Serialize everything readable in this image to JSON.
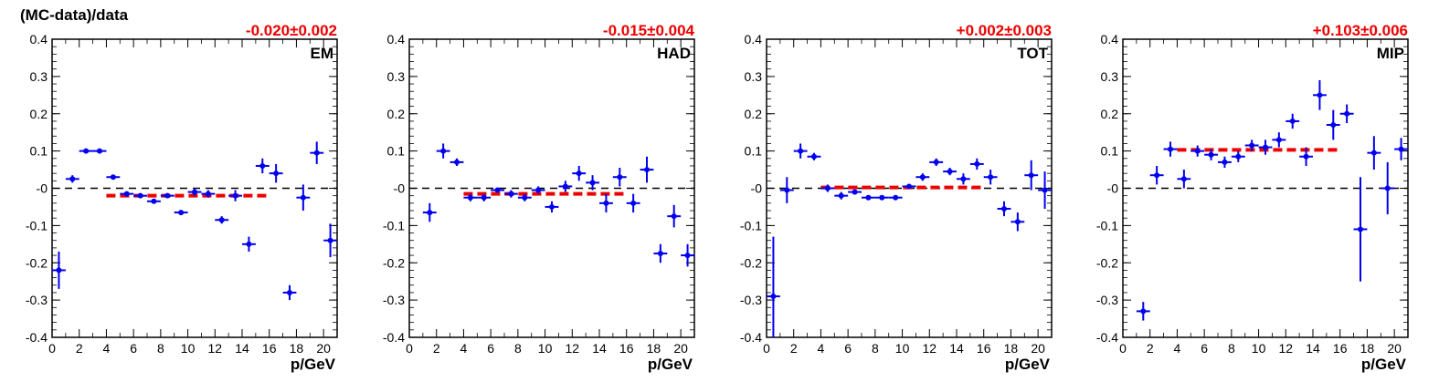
{
  "figure": {
    "ylabel": "(MC-data)/data"
  },
  "chart_data": [
    {
      "type": "scatter",
      "panel_label": "EM",
      "fit_label": "-0.020±0.002",
      "xlabel": "p/GeV",
      "xlim": [
        0,
        21
      ],
      "ylim": [
        -0.4,
        0.4
      ],
      "xticks": [
        "0",
        "2",
        "4",
        "6",
        "8",
        "10",
        "12",
        "14",
        "16",
        "18",
        "20"
      ],
      "yticks": [
        "-0.4",
        "-0.3",
        "-0.2",
        "-0.1",
        "-0",
        "0.1",
        "0.2",
        "0.3",
        "0.4"
      ],
      "reference_line": 0,
      "fit": {
        "x": [
          4,
          16
        ],
        "y": -0.02
      },
      "colors": {
        "points": "#0000ee",
        "fit": "#ee0000"
      },
      "points": [
        {
          "x": 0.5,
          "y": -0.22,
          "yerr": 0.05
        },
        {
          "x": 1.5,
          "y": 0.025,
          "yerr": 0.01
        },
        {
          "x": 2.5,
          "y": 0.1,
          "yerr": 0.005
        },
        {
          "x": 3.5,
          "y": 0.1,
          "yerr": 0.005
        },
        {
          "x": 4.5,
          "y": 0.03,
          "yerr": 0.005
        },
        {
          "x": 5.5,
          "y": -0.015,
          "yerr": 0.005
        },
        {
          "x": 6.5,
          "y": -0.02,
          "yerr": 0.005
        },
        {
          "x": 7.5,
          "y": -0.035,
          "yerr": 0.005
        },
        {
          "x": 8.5,
          "y": -0.02,
          "yerr": 0.005
        },
        {
          "x": 9.5,
          "y": -0.065,
          "yerr": 0.005
        },
        {
          "x": 10.5,
          "y": -0.01,
          "yerr": 0.01
        },
        {
          "x": 11.5,
          "y": -0.015,
          "yerr": 0.01
        },
        {
          "x": 12.5,
          "y": -0.085,
          "yerr": 0.01
        },
        {
          "x": 13.5,
          "y": -0.02,
          "yerr": 0.015
        },
        {
          "x": 14.5,
          "y": -0.15,
          "yerr": 0.02
        },
        {
          "x": 15.5,
          "y": 0.06,
          "yerr": 0.02
        },
        {
          "x": 16.5,
          "y": 0.04,
          "yerr": 0.025
        },
        {
          "x": 17.5,
          "y": -0.28,
          "yerr": 0.02
        },
        {
          "x": 18.5,
          "y": -0.025,
          "yerr": 0.035
        },
        {
          "x": 19.5,
          "y": 0.095,
          "yerr": 0.03
        },
        {
          "x": 20.5,
          "y": -0.14,
          "yerr": 0.045
        }
      ]
    },
    {
      "type": "scatter",
      "panel_label": "HAD",
      "fit_label": "-0.015±0.004",
      "xlabel": "p/GeV",
      "xlim": [
        0,
        21
      ],
      "ylim": [
        -0.4,
        0.4
      ],
      "xticks": [
        "0",
        "2",
        "4",
        "6",
        "8",
        "10",
        "12",
        "14",
        "16",
        "18",
        "20"
      ],
      "yticks": [
        "-0.4",
        "-0.3",
        "-0.2",
        "-0.1",
        "-0",
        "0.1",
        "0.2",
        "0.3",
        "0.4"
      ],
      "reference_line": 0,
      "fit": {
        "x": [
          4,
          16
        ],
        "y": -0.015
      },
      "colors": {
        "points": "#0000ee",
        "fit": "#ee0000"
      },
      "points": [
        {
          "x": 1.5,
          "y": -0.065,
          "yerr": 0.025
        },
        {
          "x": 2.5,
          "y": 0.1,
          "yerr": 0.02
        },
        {
          "x": 3.5,
          "y": 0.07,
          "yerr": 0.01
        },
        {
          "x": 4.5,
          "y": -0.025,
          "yerr": 0.01
        },
        {
          "x": 5.5,
          "y": -0.025,
          "yerr": 0.01
        },
        {
          "x": 6.5,
          "y": -0.005,
          "yerr": 0.005
        },
        {
          "x": 7.5,
          "y": -0.015,
          "yerr": 0.01
        },
        {
          "x": 8.5,
          "y": -0.025,
          "yerr": 0.01
        },
        {
          "x": 9.5,
          "y": -0.005,
          "yerr": 0.01
        },
        {
          "x": 10.5,
          "y": -0.05,
          "yerr": 0.015
        },
        {
          "x": 11.5,
          "y": 0.005,
          "yerr": 0.015
        },
        {
          "x": 12.5,
          "y": 0.04,
          "yerr": 0.02
        },
        {
          "x": 13.5,
          "y": 0.015,
          "yerr": 0.02
        },
        {
          "x": 14.5,
          "y": -0.04,
          "yerr": 0.025
        },
        {
          "x": 15.5,
          "y": 0.03,
          "yerr": 0.025
        },
        {
          "x": 16.5,
          "y": -0.04,
          "yerr": 0.025
        },
        {
          "x": 17.5,
          "y": 0.05,
          "yerr": 0.035
        },
        {
          "x": 18.5,
          "y": -0.175,
          "yerr": 0.025
        },
        {
          "x": 19.5,
          "y": -0.075,
          "yerr": 0.03
        },
        {
          "x": 20.5,
          "y": -0.18,
          "yerr": 0.03
        }
      ]
    },
    {
      "type": "scatter",
      "panel_label": "TOT",
      "fit_label": "+0.002±0.003",
      "xlabel": "p/GeV",
      "xlim": [
        0,
        21
      ],
      "ylim": [
        -0.4,
        0.4
      ],
      "xticks": [
        "0",
        "2",
        "4",
        "6",
        "8",
        "10",
        "12",
        "14",
        "16",
        "18",
        "20"
      ],
      "yticks": [
        "-0.4",
        "-0.3",
        "-0.2",
        "-0.1",
        "-0",
        "0.1",
        "0.2",
        "0.3",
        "0.4"
      ],
      "reference_line": 0,
      "fit": {
        "x": [
          4,
          16
        ],
        "y": 0.002
      },
      "colors": {
        "points": "#0000ee",
        "fit": "#ee0000"
      },
      "points": [
        {
          "x": 0.5,
          "y": -0.29,
          "yerr": 0.16
        },
        {
          "x": 1.5,
          "y": -0.005,
          "yerr": 0.035
        },
        {
          "x": 2.5,
          "y": 0.1,
          "yerr": 0.02
        },
        {
          "x": 3.5,
          "y": 0.085,
          "yerr": 0.01
        },
        {
          "x": 4.5,
          "y": 0.0,
          "yerr": 0.01
        },
        {
          "x": 5.5,
          "y": -0.02,
          "yerr": 0.01
        },
        {
          "x": 6.5,
          "y": -0.01,
          "yerr": 0.005
        },
        {
          "x": 7.5,
          "y": -0.025,
          "yerr": 0.005
        },
        {
          "x": 8.5,
          "y": -0.025,
          "yerr": 0.005
        },
        {
          "x": 9.5,
          "y": -0.025,
          "yerr": 0.005
        },
        {
          "x": 10.5,
          "y": 0.005,
          "yerr": 0.005
        },
        {
          "x": 11.5,
          "y": 0.03,
          "yerr": 0.01
        },
        {
          "x": 12.5,
          "y": 0.07,
          "yerr": 0.01
        },
        {
          "x": 13.5,
          "y": 0.045,
          "yerr": 0.01
        },
        {
          "x": 14.5,
          "y": 0.025,
          "yerr": 0.015
        },
        {
          "x": 15.5,
          "y": 0.065,
          "yerr": 0.015
        },
        {
          "x": 16.5,
          "y": 0.03,
          "yerr": 0.02
        },
        {
          "x": 17.5,
          "y": -0.055,
          "yerr": 0.02
        },
        {
          "x": 18.5,
          "y": -0.09,
          "yerr": 0.025
        },
        {
          "x": 19.5,
          "y": 0.035,
          "yerr": 0.04
        },
        {
          "x": 20.5,
          "y": -0.005,
          "yerr": 0.05
        }
      ]
    },
    {
      "type": "scatter",
      "panel_label": "MIP",
      "fit_label": "+0.103±0.006",
      "xlabel": "p/GeV",
      "xlim": [
        0,
        21
      ],
      "ylim": [
        -0.4,
        0.4
      ],
      "xticks": [
        "0",
        "2",
        "4",
        "6",
        "8",
        "10",
        "12",
        "14",
        "16",
        "18",
        "20"
      ],
      "yticks": [
        "-0.4",
        "-0.3",
        "-0.2",
        "-0.1",
        "-0",
        "0.1",
        "0.2",
        "0.3",
        "0.4"
      ],
      "reference_line": 0,
      "fit": {
        "x": [
          4,
          16
        ],
        "y": 0.103
      },
      "colors": {
        "points": "#0000ee",
        "fit": "#ee0000"
      },
      "points": [
        {
          "x": 1.5,
          "y": -0.33,
          "yerr": 0.025
        },
        {
          "x": 2.5,
          "y": 0.035,
          "yerr": 0.025
        },
        {
          "x": 3.5,
          "y": 0.105,
          "yerr": 0.02
        },
        {
          "x": 4.5,
          "y": 0.025,
          "yerr": 0.025
        },
        {
          "x": 5.5,
          "y": 0.1,
          "yerr": 0.015
        },
        {
          "x": 6.5,
          "y": 0.09,
          "yerr": 0.015
        },
        {
          "x": 7.5,
          "y": 0.07,
          "yerr": 0.015
        },
        {
          "x": 8.5,
          "y": 0.085,
          "yerr": 0.015
        },
        {
          "x": 9.5,
          "y": 0.115,
          "yerr": 0.015
        },
        {
          "x": 10.5,
          "y": 0.11,
          "yerr": 0.02
        },
        {
          "x": 11.5,
          "y": 0.13,
          "yerr": 0.02
        },
        {
          "x": 12.5,
          "y": 0.18,
          "yerr": 0.02
        },
        {
          "x": 13.5,
          "y": 0.085,
          "yerr": 0.025
        },
        {
          "x": 14.5,
          "y": 0.25,
          "yerr": 0.04
        },
        {
          "x": 15.5,
          "y": 0.17,
          "yerr": 0.04
        },
        {
          "x": 16.5,
          "y": 0.2,
          "yerr": 0.025
        },
        {
          "x": 17.5,
          "y": -0.11,
          "yerr": 0.14
        },
        {
          "x": 18.5,
          "y": 0.095,
          "yerr": 0.045
        },
        {
          "x": 19.5,
          "y": 0.0,
          "yerr": 0.07
        },
        {
          "x": 20.5,
          "y": 0.105,
          "yerr": 0.03
        }
      ]
    }
  ]
}
